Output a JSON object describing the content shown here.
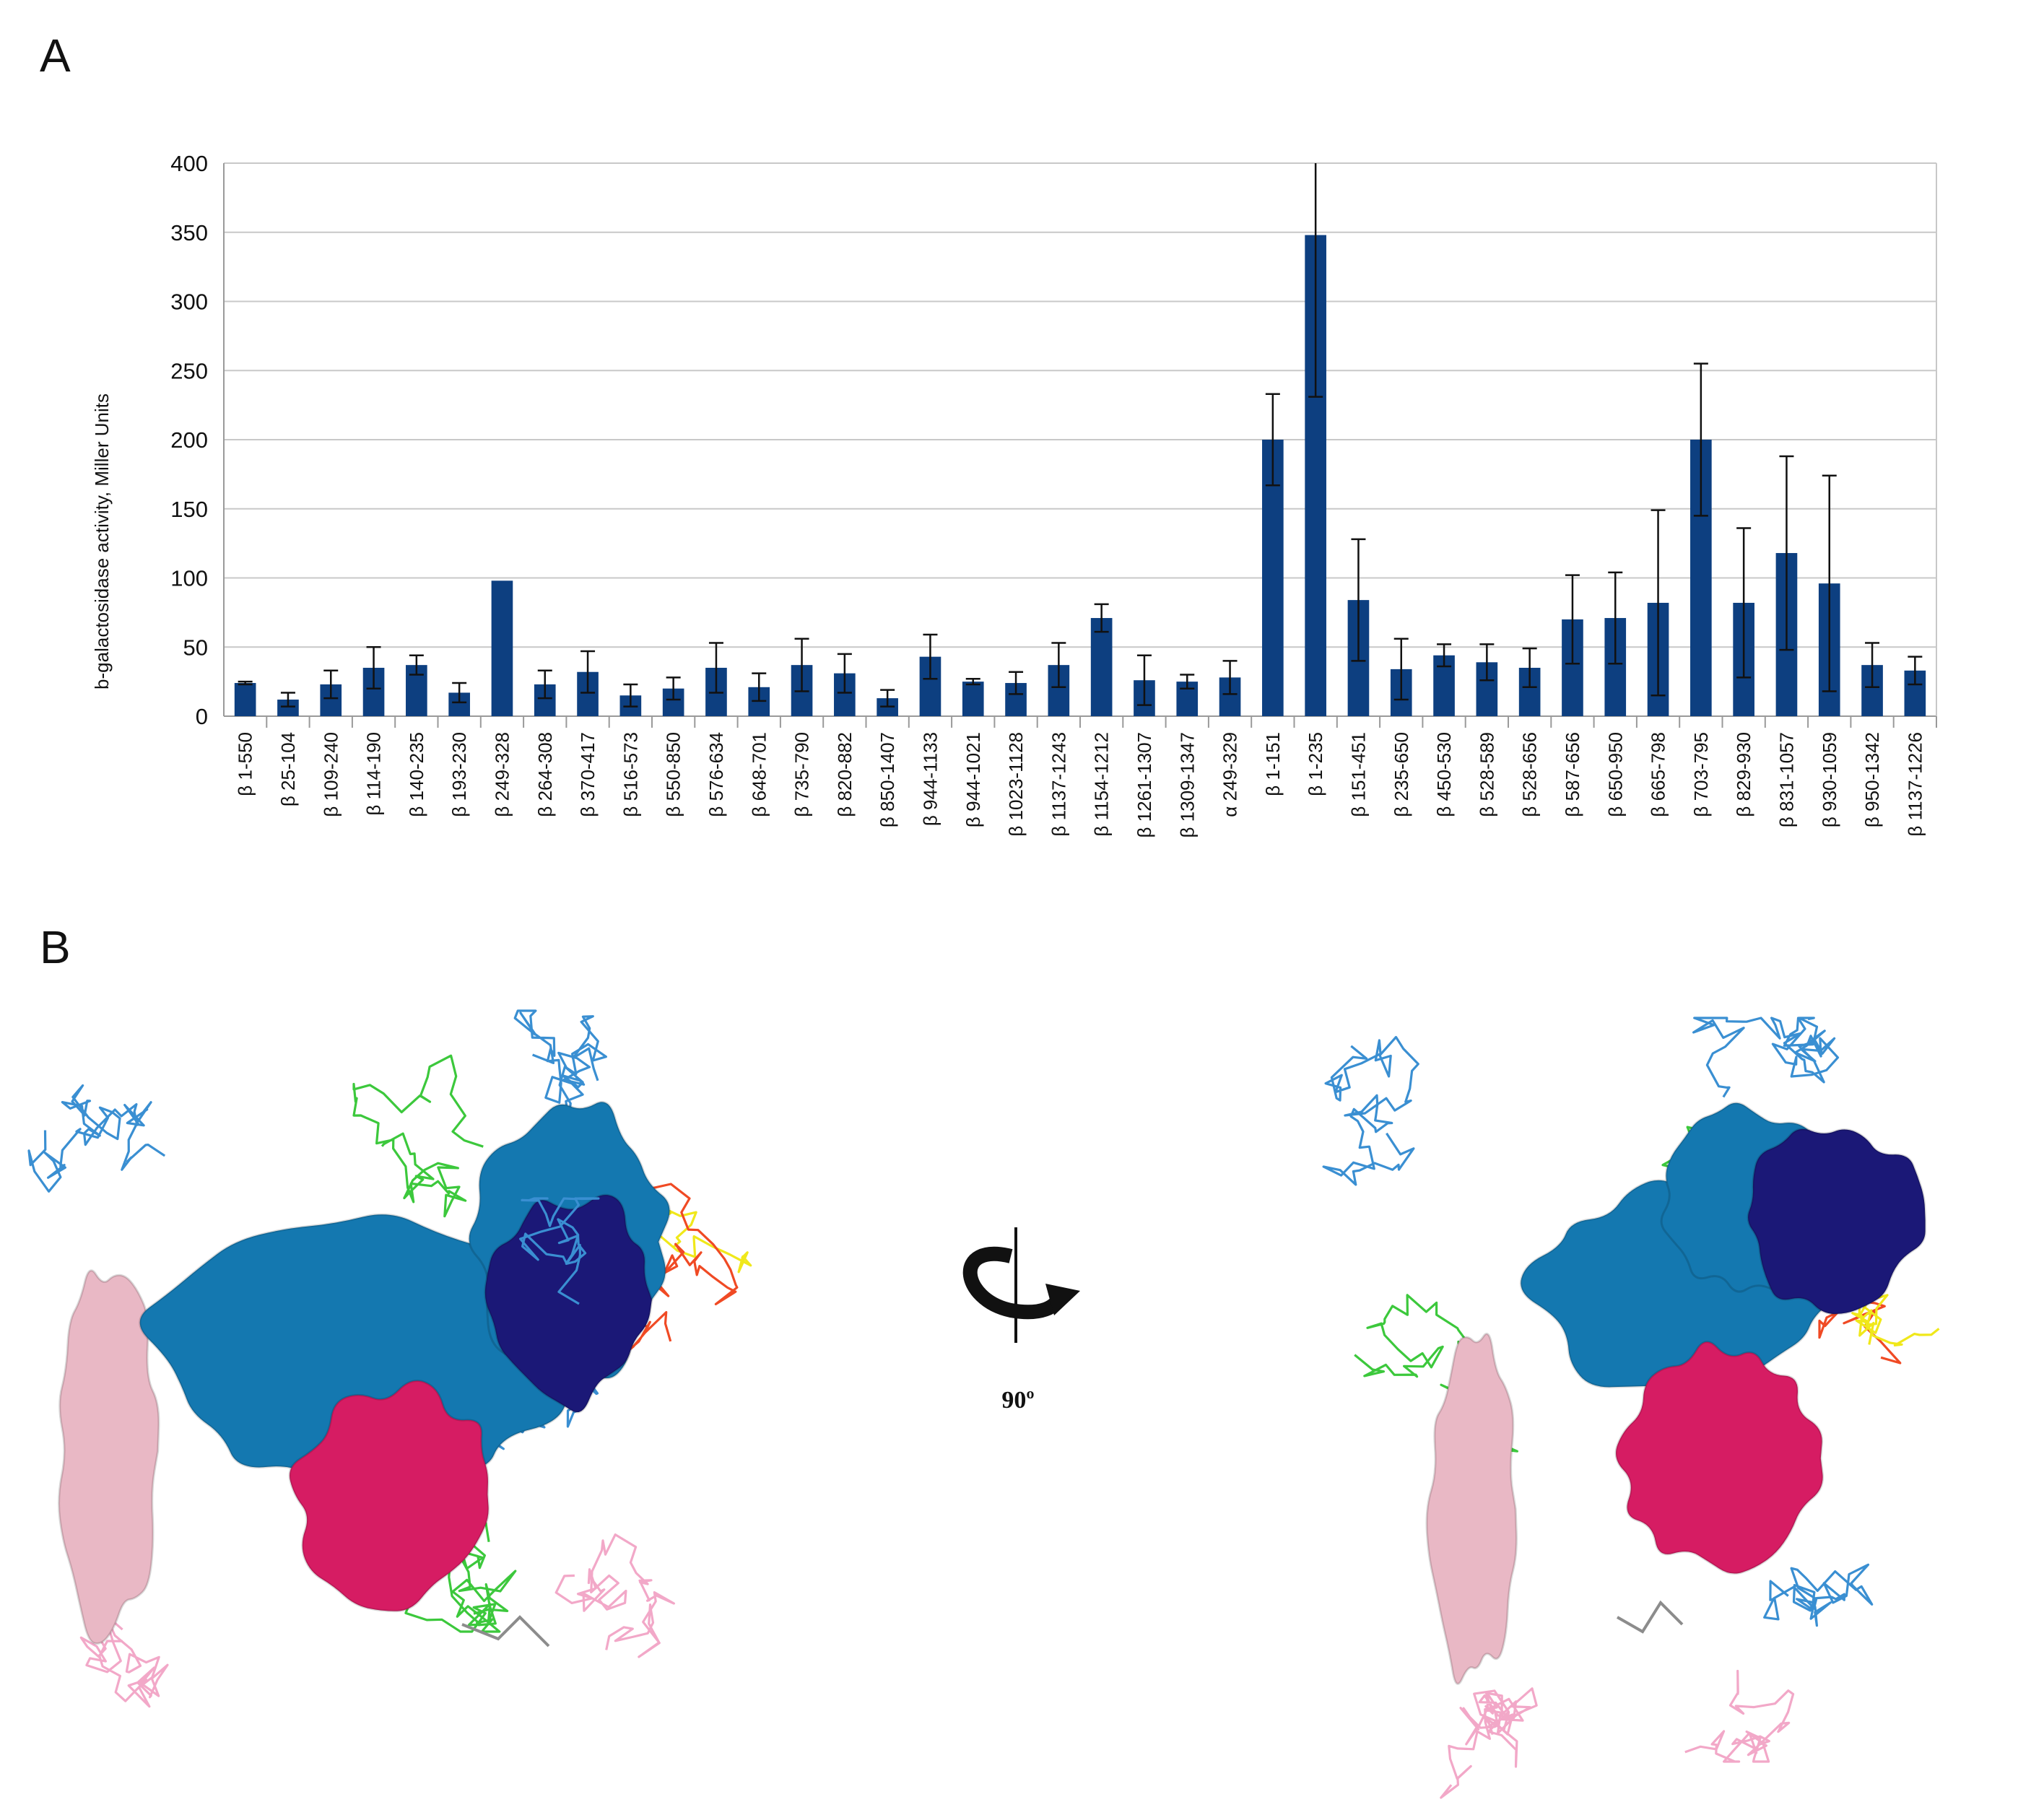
{
  "figure": {
    "panel_a_label": "A",
    "panel_b_label": "B",
    "rotation_label": "90º"
  },
  "colors": {
    "bar": "#0d3f80",
    "grid": "#c8c8c8",
    "axis": "#9a9a9a",
    "surface_blue": "#1478b0",
    "surface_navy": "#1b1877",
    "surface_magenta": "#d61c63",
    "surface_pink": "#e9b8c5",
    "ribbon_blue": "#3a8fd2",
    "ribbon_green": "#3cc83c",
    "ribbon_red": "#f04a24",
    "ribbon_yellow": "#f0e81a",
    "ribbon_pink": "#f2a8c8",
    "ribbon_gray": "#8c8c8c"
  },
  "chart_data": {
    "type": "bar",
    "title": "",
    "xlabel": "",
    "ylabel": "b-galactosidase activity, Miller Units",
    "ylim": [
      0,
      400
    ],
    "yticks": [
      0,
      50,
      100,
      150,
      200,
      250,
      300,
      350,
      400
    ],
    "grid": true,
    "categories": [
      "β 1-550",
      "β 25-104",
      "β 109-240",
      "β 114-190",
      "β 140-235",
      "β 193-230",
      "β 249-328",
      "β 264-308",
      "β 370-417",
      "β 516-573",
      "β 550-850",
      "β 576-634",
      "β 648-701",
      "β 735-790",
      "β 820-882",
      "β 850-1407",
      "β 944-1133",
      "β 944-1021",
      "β 1023-1128",
      "β 1137-1243",
      "β 1154-1212",
      "β 1261-1307",
      "β 1309-1347",
      "α 249-329",
      "β 1-151",
      "β 1-235",
      "β 151-451",
      "β 235-650",
      "β 450-530",
      "β 528-589",
      "β 528-656",
      "β 587-656",
      "β 650-950",
      "β 665-798",
      "β 703-795",
      "β 829-930",
      "β 831-1057",
      "β 930-1059",
      "β 950-1342",
      "β 1137-1226"
    ],
    "values": [
      24,
      12,
      23,
      35,
      37,
      17,
      98,
      23,
      32,
      15,
      20,
      35,
      21,
      37,
      31,
      13,
      43,
      25,
      24,
      37,
      71,
      26,
      25,
      28,
      200,
      348,
      84,
      34,
      44,
      39,
      35,
      70,
      71,
      82,
      200,
      82,
      118,
      96,
      37,
      33
    ],
    "errors": [
      1,
      5,
      10,
      15,
      7,
      7,
      0,
      10,
      15,
      8,
      8,
      18,
      10,
      19,
      14,
      6,
      16,
      2,
      8,
      16,
      10,
      18,
      5,
      12,
      33,
      117,
      44,
      22,
      8,
      13,
      14,
      32,
      33,
      67,
      55,
      54,
      70,
      78,
      16,
      10
    ]
  }
}
